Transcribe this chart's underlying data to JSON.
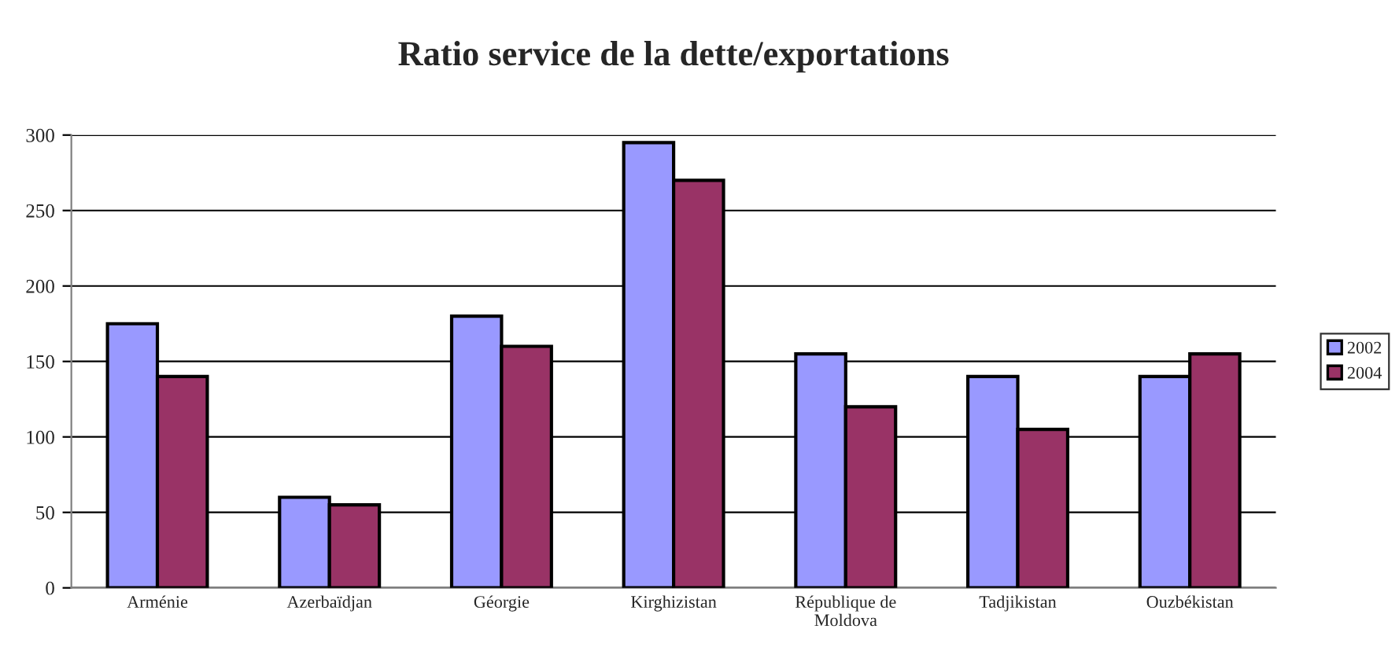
{
  "chart_data": {
    "type": "bar",
    "title": "Ratio service de la dette/exportations",
    "categories": [
      "Arménie",
      "Azerbaïdjan",
      "Géorgie",
      "Kirghizistan",
      "République de\nMoldova",
      "Tadjikistan",
      "Ouzbékistan"
    ],
    "series": [
      {
        "name": "2002",
        "color": "#9999ff",
        "values": [
          175,
          60,
          180,
          295,
          155,
          140,
          140
        ]
      },
      {
        "name": "2004",
        "color": "#993366",
        "values": [
          140,
          55,
          160,
          270,
          120,
          105,
          155
        ]
      }
    ],
    "ylim": [
      0,
      300
    ],
    "yticks": [
      0,
      50,
      100,
      150,
      200,
      250,
      300
    ],
    "grid": "y",
    "legend": "right"
  }
}
